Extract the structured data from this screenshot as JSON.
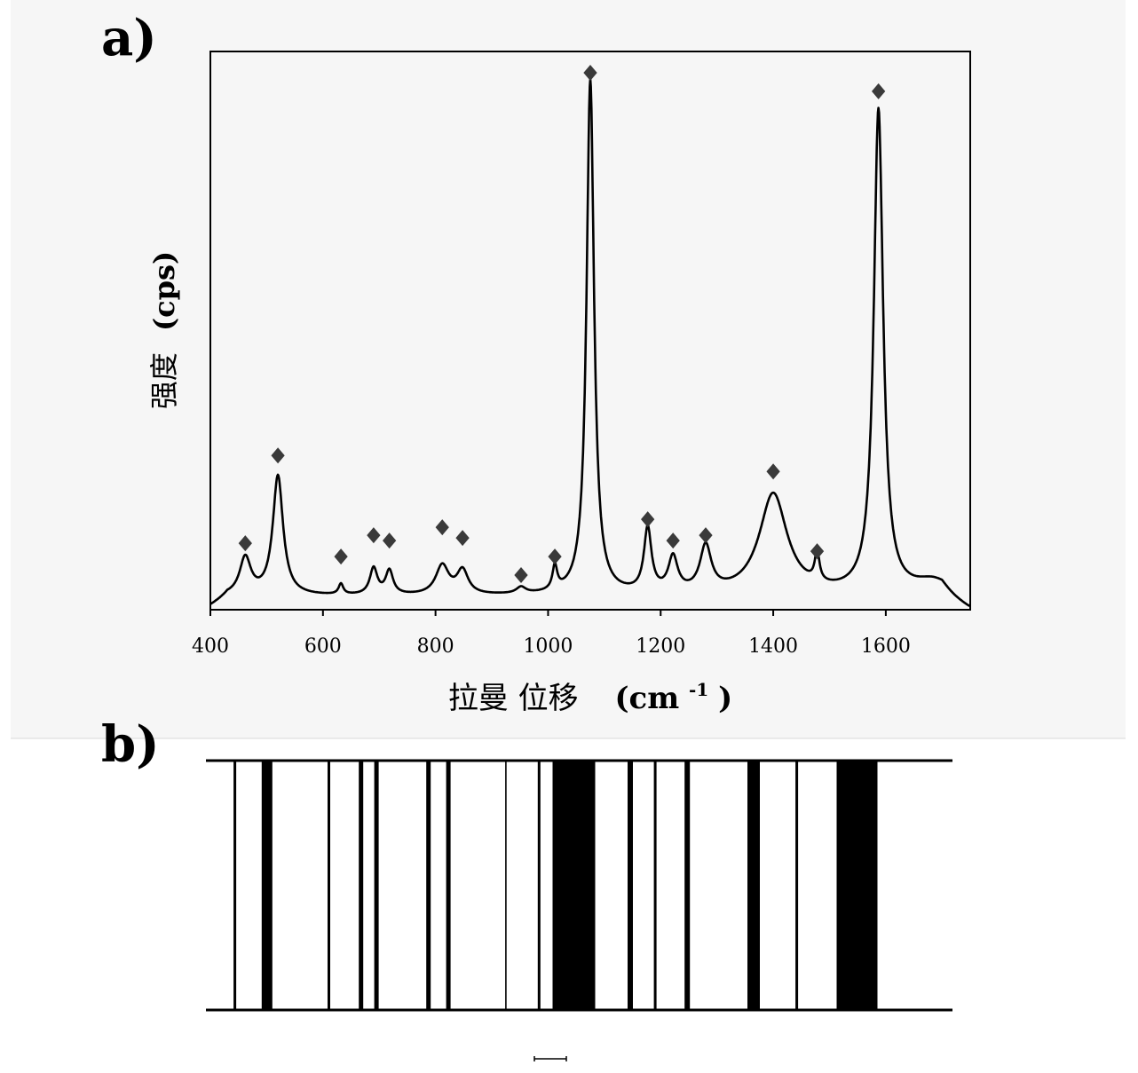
{
  "panels": {
    "a_label": "a)",
    "b_label": "b)"
  },
  "colors": {
    "line": "#000000",
    "marker": "#3a3a3a",
    "background": "#f6f6f6"
  },
  "chart_data": [
    {
      "type": "line",
      "title": "",
      "xlabel": "拉曼 位移",
      "xlabel_unit": "(cm",
      "xlabel_sup": "-1",
      "xlabel_close": ")",
      "ylabel": "强度",
      "ylabel_unit": "(cps)",
      "xlim": [
        400,
        1750
      ],
      "ylim": [
        0,
        105
      ],
      "xticks": [
        400,
        600,
        800,
        1000,
        1200,
        1400,
        1600
      ],
      "yticks_shown": false,
      "grid": false,
      "baseline": 2.5,
      "peaks": [
        {
          "x": 462,
          "height": 7,
          "width": 12
        },
        {
          "x": 520,
          "height": 22.5,
          "width": 11
        },
        {
          "x": 632,
          "height": 2,
          "width": 5
        },
        {
          "x": 690,
          "height": 5,
          "width": 8
        },
        {
          "x": 718,
          "height": 4.5,
          "width": 8
        },
        {
          "x": 812,
          "height": 5.5,
          "width": 14
        },
        {
          "x": 848,
          "height": 4.5,
          "width": 12
        },
        {
          "x": 952,
          "height": 1.2,
          "width": 10
        },
        {
          "x": 1012,
          "height": 4.5,
          "width": 5
        },
        {
          "x": 1075,
          "height": 97,
          "width": 8
        },
        {
          "x": 1177,
          "height": 12,
          "width": 8
        },
        {
          "x": 1222,
          "height": 6.5,
          "width": 10
        },
        {
          "x": 1280,
          "height": 8.5,
          "width": 12
        },
        {
          "x": 1400,
          "height": 19,
          "width": 30
        },
        {
          "x": 1478,
          "height": 5.5,
          "width": 5
        },
        {
          "x": 1587,
          "height": 91,
          "width": 10
        },
        {
          "x": 1685,
          "height": 2.5,
          "width": 40
        }
      ],
      "markers": [
        {
          "x": 462,
          "y": 12.5
        },
        {
          "x": 520,
          "y": 29
        },
        {
          "x": 632,
          "y": 10
        },
        {
          "x": 690,
          "y": 14
        },
        {
          "x": 718,
          "y": 13
        },
        {
          "x": 812,
          "y": 15.5
        },
        {
          "x": 848,
          "y": 13.5
        },
        {
          "x": 952,
          "y": 6.5
        },
        {
          "x": 1012,
          "y": 10
        },
        {
          "x": 1075,
          "y": 101
        },
        {
          "x": 1177,
          "y": 17
        },
        {
          "x": 1222,
          "y": 13
        },
        {
          "x": 1280,
          "y": 14
        },
        {
          "x": 1400,
          "y": 26
        },
        {
          "x": 1478,
          "y": 11
        },
        {
          "x": 1587,
          "y": 97.5
        }
      ]
    },
    {
      "type": "barcode",
      "xlim": [
        400,
        1750
      ],
      "bars": [
        {
          "x": 462,
          "weight": 1.5
        },
        {
          "x": 520,
          "weight": 6
        },
        {
          "x": 632,
          "weight": 1.5
        },
        {
          "x": 690,
          "weight": 2.5
        },
        {
          "x": 718,
          "weight": 2.5
        },
        {
          "x": 812,
          "weight": 2.5
        },
        {
          "x": 848,
          "weight": 2.5
        },
        {
          "x": 952,
          "weight": 0.8
        },
        {
          "x": 1012,
          "weight": 1.5
        },
        {
          "x": 1075,
          "weight": 24
        },
        {
          "x": 1177,
          "weight": 3
        },
        {
          "x": 1222,
          "weight": 1.5
        },
        {
          "x": 1280,
          "weight": 3
        },
        {
          "x": 1400,
          "weight": 7
        },
        {
          "x": 1478,
          "weight": 1.5
        },
        {
          "x": 1587,
          "weight": 23
        }
      ]
    }
  ]
}
